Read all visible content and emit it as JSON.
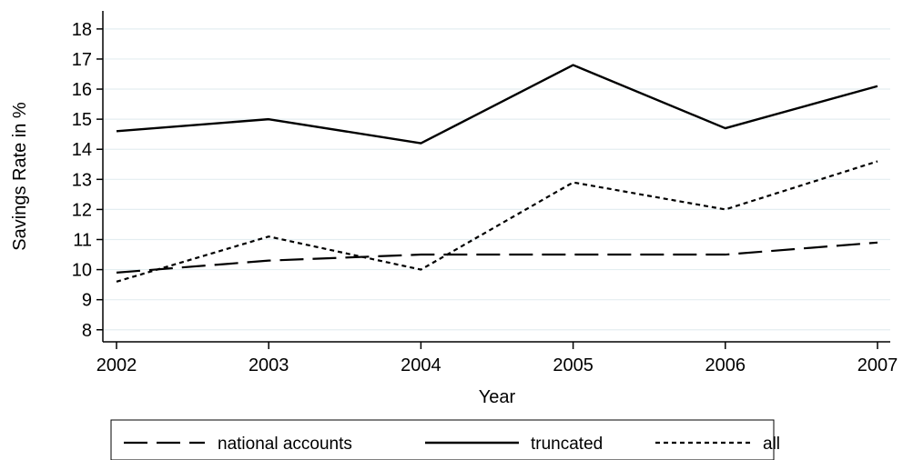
{
  "chart_data": {
    "type": "line",
    "title": "",
    "xlabel": "Year",
    "ylabel": "Savings Rate in %",
    "x": [
      2002,
      2003,
      2004,
      2005,
      2006,
      2007
    ],
    "xlim": [
      2002,
      2007
    ],
    "ylim": [
      7.6,
      18.6
    ],
    "yticks": [
      8,
      9,
      10,
      11,
      12,
      13,
      14,
      15,
      16,
      17,
      18
    ],
    "grid": true,
    "legend_position": "bottom",
    "series": [
      {
        "name": "national accounts",
        "style": "dashed",
        "values": [
          9.9,
          10.3,
          10.5,
          10.5,
          10.5,
          10.9
        ]
      },
      {
        "name": "truncated",
        "style": "solid",
        "values": [
          14.6,
          15.0,
          14.2,
          16.8,
          14.7,
          16.1
        ]
      },
      {
        "name": "all",
        "style": "dotted",
        "values": [
          9.6,
          11.1,
          10.0,
          12.9,
          12.0,
          13.6
        ]
      }
    ],
    "colors": {
      "line": "#000000",
      "grid": "#e4eef1",
      "axis": "#000000"
    }
  }
}
